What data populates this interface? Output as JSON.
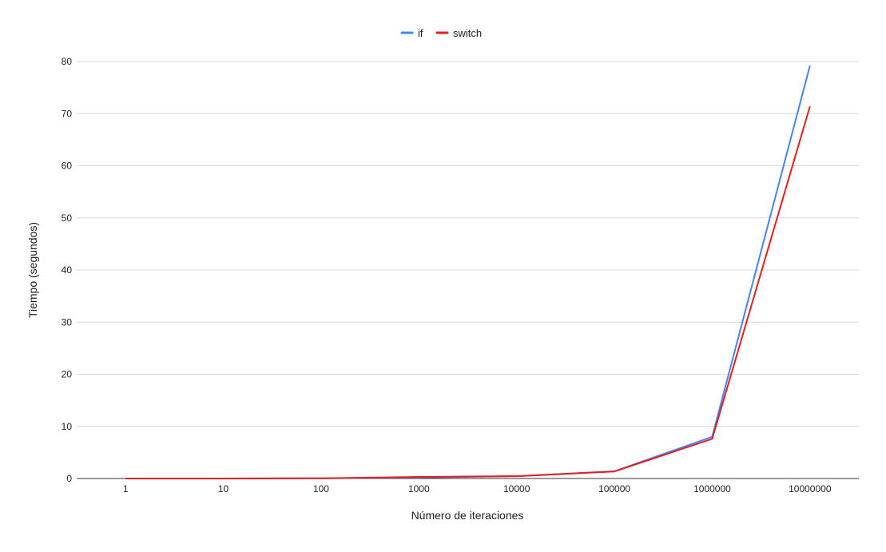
{
  "chart_data": {
    "type": "line",
    "title": "",
    "xlabel": "Número de iteraciones",
    "ylabel": "Tiempo (segundos)",
    "categories": [
      "1",
      "10",
      "100",
      "1000",
      "10000",
      "100000",
      "1000000",
      "10000000"
    ],
    "series": [
      {
        "name": "if",
        "color": "#4285F4",
        "values": [
          0.0,
          0.0,
          0.05,
          0.2,
          0.45,
          1.4,
          8.0,
          79.2
        ]
      },
      {
        "name": "switch",
        "color": "#EA1C1C",
        "values": [
          0.0,
          0.0,
          0.05,
          0.3,
          0.45,
          1.35,
          7.6,
          71.4
        ]
      }
    ],
    "ylim": [
      0,
      80
    ],
    "yticks": [
      0,
      10,
      20,
      30,
      40,
      50,
      60,
      70,
      80
    ],
    "grid": true,
    "legend_position": "top-center"
  }
}
